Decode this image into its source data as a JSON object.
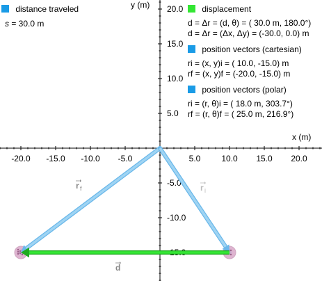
{
  "legend_left": {
    "title": "distance traveled",
    "s_label": "s",
    "s_value": "=  30.0 m",
    "color": "#1a9be6"
  },
  "legend_right": {
    "displacement": {
      "title": "displacement",
      "color": "#33e633",
      "line1_label": "d = Δr = (d, θ) =",
      "line1_value": "( 30.0 m,  180.0°)",
      "line2_label": "d = Δr = (Δx, Δy) =",
      "line2_value": "(-30.0,  0.0) m"
    },
    "cartesian": {
      "title": "position vectors (cartesian)",
      "color": "#1a9be6",
      "ri_label": "ri = (x, y)i =",
      "ri_value": "( 10.0, -15.0) m",
      "rf_label": "rf = (x, y)f =",
      "rf_value": "(-20.0, -15.0) m"
    },
    "polar": {
      "title": "position vectors (polar)",
      "color": "#1a9be6",
      "ri_label": "ri = (r, θ)i =",
      "ri_value": "( 18.0 m,  303.7°)",
      "rf_label": "rf = (r, θ)f =",
      "rf_value": "( 25.0 m,  216.9°)"
    }
  },
  "axes": {
    "x_label": "x (m)",
    "y_label": "y (m)",
    "x_ticks": [
      "-20.0",
      "-15.0",
      "-10.0",
      "-5.0",
      "5.0",
      "10.0",
      "15.0",
      "20.0"
    ],
    "y_ticks": [
      "20.0",
      "15.0",
      "10.0",
      "5.0",
      "-5.0",
      "-10.0",
      "-15.0"
    ]
  },
  "vector_labels": {
    "rf": "rf",
    "ri": "ri",
    "d": "d"
  },
  "points": {
    "origin": [
      0,
      0
    ],
    "initial": [
      10,
      -15
    ],
    "final": [
      -20,
      -15
    ]
  },
  "colors": {
    "position_vector": "#9fd4f3",
    "position_vector_edge": "#6ab8ea",
    "displacement": "#33e633",
    "ball": "#d9a7c8"
  }
}
